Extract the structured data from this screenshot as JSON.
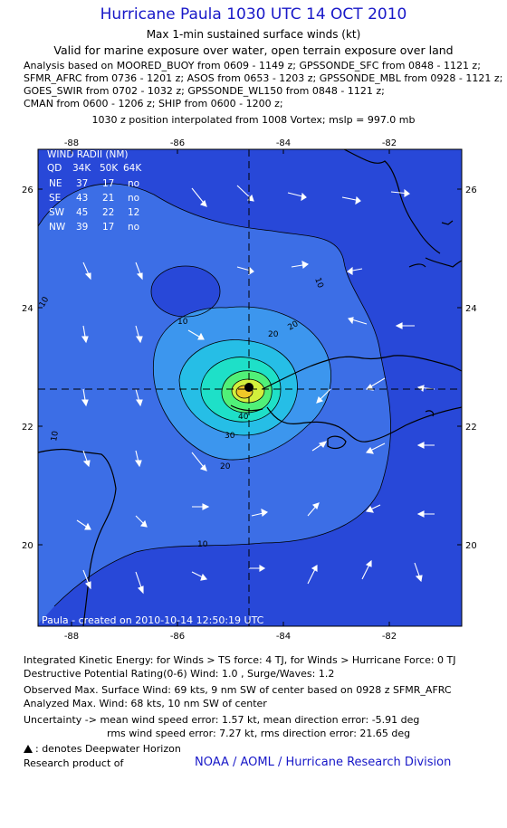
{
  "header": {
    "title": "Hurricane Paula 1030 UTC 14 OCT 2010",
    "subtitle_1": "Max 1-min sustained surface winds (kt)",
    "subtitle_2": "Valid for marine exposure over water, open terrain exposure over land",
    "analysis_lines": [
      "Analysis based on MOORED_BUOY from 0609 - 1149 z; GPSSONDE_SFC from 0848 - 1121 z;",
      "SFMR_AFRC from 0736 - 1201 z; ASOS from 0653 - 1203 z; GPSSONDE_MBL from 0928 - 1121 z;",
      "GOES_SWIR from 0702 - 1032 z; GPSSONDE_WL150 from 0848 - 1121 z;",
      "CMAN from 0600 - 1206 z; SHIP from 0600 - 1200 z;"
    ],
    "position_note": "1030 z position interpolated from 1008 Vortex; mslp = 997.0 mb"
  },
  "map": {
    "lon_ticks": [
      "-88",
      "-86",
      "-84",
      "-82"
    ],
    "lat_ticks": [
      "26",
      "24",
      "22",
      "20"
    ],
    "center": {
      "lon": -84.6,
      "lat": 22.6
    },
    "contour_labels": [
      "10",
      "10",
      "10",
      "10",
      "20",
      "20",
      "30",
      "40",
      "20",
      "10"
    ],
    "wind_radii": {
      "title": "WIND RADII (NM)",
      "header": [
        "QD",
        "34K",
        "50K",
        "64K"
      ],
      "rows": [
        [
          "NE",
          "37",
          "17",
          "no"
        ],
        [
          "SE",
          "43",
          "21",
          "no"
        ],
        [
          "SW",
          "45",
          "22",
          "12"
        ],
        [
          "NW",
          "39",
          "17",
          "no"
        ]
      ]
    },
    "footer": "Paula - created on 2010-10-14 12:50:19 UTC",
    "colors": {
      "ocean": "#2848d8",
      "band_10": "#3c6ee6",
      "band_20": "#3c96ee",
      "band_30": "#26bee6",
      "band_40": "#1ee0c8",
      "band_50": "#50f078",
      "band_60": "#d2f03c",
      "band_70": "#f0c828"
    }
  },
  "stats": {
    "ike": "Integrated Kinetic Energy:  for Winds > TS force: 4 TJ,  for Winds > Hurricane Force: 0 TJ",
    "dpr": "Destructive Potential Rating(0-6)   Wind: 1.0 , Surge/Waves: 1.2",
    "observed": "Observed Max. Surface Wind: 69 kts, 9 nm SW of center based on 0928 z SFMR_AFRC",
    "analyzed": "Analyzed Max. Wind: 68 kts, 10 nm SW of center",
    "uncertainty_1": "Uncertainty -> mean wind speed error: 1.57 kt,   mean direction error:  -5.91 deg",
    "uncertainty_2": "rms wind speed error: 7.27 kt,   rms direction error: 21.65 deg",
    "deepwater": ": denotes Deepwater Horizon",
    "research": "Research product of",
    "org": "NOAA / AOML / Hurricane Research Division"
  }
}
